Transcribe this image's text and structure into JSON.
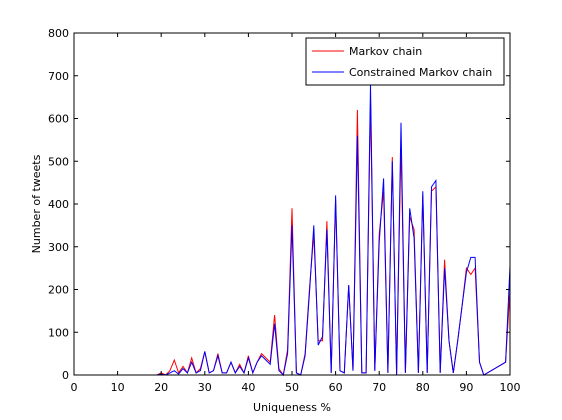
{
  "chart_data": {
    "type": "line",
    "title": "",
    "xlabel": "Uniqueness %",
    "ylabel": "Number of tweets",
    "xlim": [
      0,
      100
    ],
    "ylim": [
      0,
      800
    ],
    "xticks": [
      "0",
      "10",
      "20",
      "30",
      "40",
      "50",
      "60",
      "70",
      "80",
      "90",
      "100"
    ],
    "yticks": [
      "0",
      "100",
      "200",
      "300",
      "400",
      "500",
      "600",
      "700",
      "800"
    ],
    "grid": false,
    "legend_position": "top-right",
    "series": [
      {
        "name": "Markov chain",
        "color": "#ff0000",
        "x": [
          0,
          19,
          20,
          21,
          22,
          23,
          24,
          25,
          26,
          27,
          28,
          29,
          30,
          31,
          32,
          33,
          34,
          35,
          36,
          37,
          38,
          39,
          40,
          41,
          42,
          43,
          44,
          45,
          46,
          47,
          48,
          49,
          50,
          51,
          52,
          53,
          54,
          55,
          56,
          57,
          58,
          59,
          60,
          61,
          62,
          63,
          64,
          65,
          66,
          67,
          68,
          69,
          70,
          71,
          72,
          73,
          74,
          75,
          76,
          77,
          78,
          79,
          80,
          81,
          82,
          83,
          84,
          85,
          86,
          87,
          88,
          89,
          90,
          91,
          92,
          93,
          94,
          99,
          100
        ],
        "y": [
          0,
          0,
          5,
          0,
          10,
          35,
          5,
          20,
          5,
          40,
          5,
          15,
          55,
          5,
          10,
          50,
          5,
          5,
          30,
          5,
          25,
          5,
          45,
          5,
          30,
          50,
          40,
          30,
          140,
          15,
          0,
          60,
          390,
          5,
          0,
          50,
          200,
          330,
          80,
          80,
          360,
          5,
          410,
          10,
          5,
          210,
          10,
          620,
          5,
          5,
          640,
          10,
          330,
          430,
          5,
          510,
          0,
          540,
          5,
          370,
          340,
          5,
          420,
          5,
          430,
          440,
          5,
          270,
          80,
          5,
          80,
          160,
          250,
          235,
          250,
          30,
          0,
          30,
          200
        ]
      },
      {
        "name": "Constrained Markov chain",
        "color": "#0000ff",
        "x": [
          0,
          19,
          20,
          21,
          22,
          23,
          24,
          25,
          26,
          27,
          28,
          29,
          30,
          31,
          32,
          33,
          34,
          35,
          36,
          37,
          38,
          39,
          40,
          41,
          42,
          43,
          44,
          45,
          46,
          47,
          48,
          49,
          50,
          51,
          52,
          53,
          54,
          55,
          56,
          57,
          58,
          59,
          60,
          61,
          62,
          63,
          64,
          65,
          66,
          67,
          68,
          69,
          70,
          71,
          72,
          73,
          74,
          75,
          76,
          77,
          78,
          79,
          80,
          81,
          82,
          83,
          84,
          85,
          86,
          87,
          88,
          89,
          90,
          91,
          92,
          93,
          94,
          99,
          100
        ],
        "y": [
          0,
          0,
          2,
          0,
          5,
          10,
          2,
          15,
          5,
          30,
          5,
          10,
          55,
          5,
          10,
          45,
          5,
          5,
          30,
          5,
          20,
          5,
          40,
          5,
          30,
          45,
          35,
          25,
          120,
          10,
          0,
          50,
          350,
          5,
          0,
          45,
          190,
          350,
          70,
          90,
          340,
          5,
          420,
          10,
          5,
          210,
          10,
          560,
          5,
          5,
          680,
          10,
          310,
          460,
          5,
          500,
          0,
          590,
          5,
          390,
          320,
          5,
          430,
          5,
          440,
          455,
          5,
          250,
          80,
          5,
          80,
          160,
          240,
          275,
          275,
          30,
          0,
          30,
          255
        ]
      }
    ]
  }
}
